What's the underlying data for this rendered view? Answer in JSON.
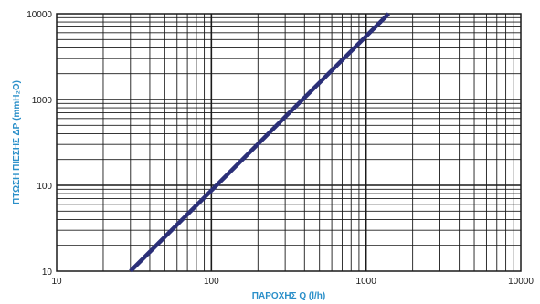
{
  "chart_data": {
    "type": "line",
    "x_scale": "log",
    "y_scale": "log",
    "xlim": [
      10,
      10000
    ],
    "ylim": [
      10,
      10000
    ],
    "xlabel": "ΠΑΡΟΧΗΣ Q (l/h)",
    "ylabel": "ΠΤΩΣΗ ΠΙΕΣΗΣ ΔΡ (mmH₂O)",
    "x_ticks": [
      "10",
      "100",
      "1000",
      "10000"
    ],
    "y_ticks": [
      "10",
      "100",
      "1000",
      "10000"
    ],
    "grid": true,
    "series": [
      {
        "x": [
          30,
          1400
        ],
        "y": [
          10,
          10000
        ]
      }
    ],
    "colors": {
      "line": "#2b2f78",
      "axis_title": "#2a8fc9",
      "grid": "#1a1a1a"
    }
  }
}
